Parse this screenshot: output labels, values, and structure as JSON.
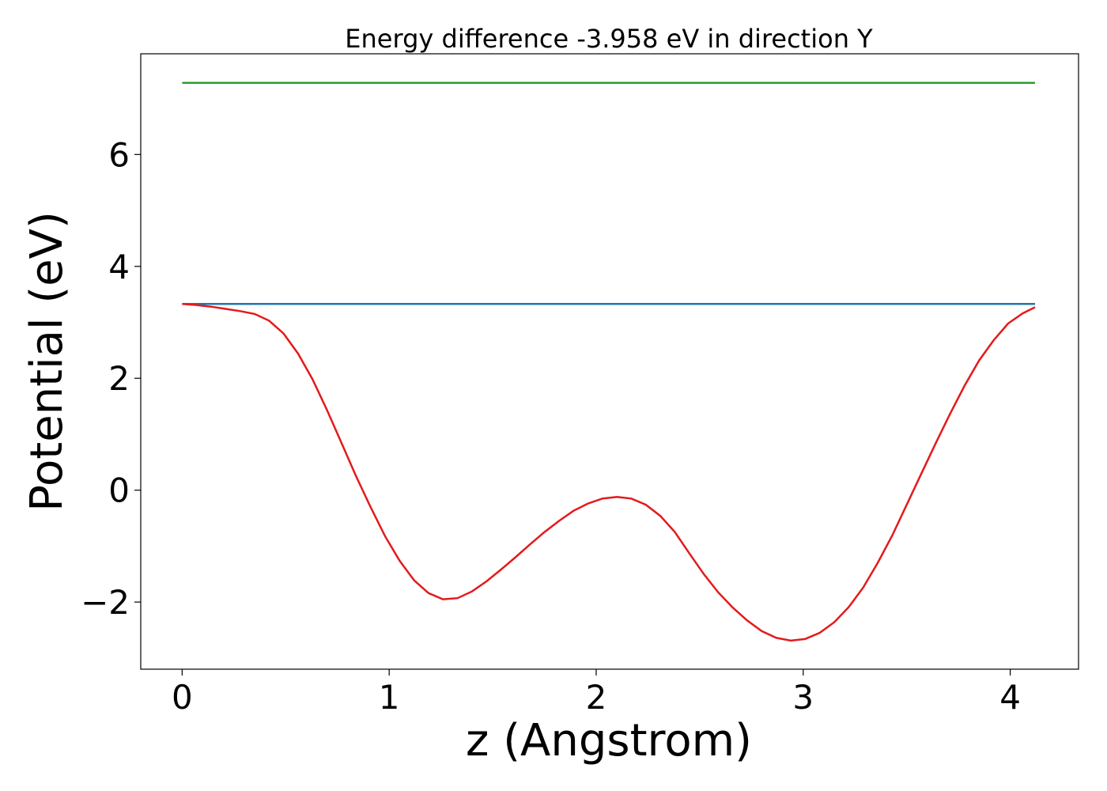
{
  "chart_data": {
    "type": "line",
    "title": "Energy difference -3.958 eV in direction Y",
    "xlabel": "z (Angstrom)",
    "ylabel": "Potential (eV)",
    "xlim": [
      -0.2,
      4.33
    ],
    "ylim": [
      -3.2,
      7.8
    ],
    "xticks": [
      0,
      1,
      2,
      3,
      4
    ],
    "yticks": [
      -2,
      0,
      2,
      4,
      6
    ],
    "xtick_labels": [
      "0",
      "1",
      "2",
      "3",
      "4"
    ],
    "ytick_labels": [
      "−2",
      "0",
      "2",
      "4",
      "6"
    ],
    "grid": false,
    "series": [
      {
        "color": "#2ca02c",
        "x": [
          0,
          4.12
        ],
        "y": [
          7.28,
          7.28
        ]
      },
      {
        "color": "#1f77b4",
        "x": [
          0,
          4.12
        ],
        "y": [
          3.33,
          3.33
        ]
      },
      {
        "color": "#e31a1c",
        "x": [
          0,
          0.07,
          0.14,
          0.21,
          0.28,
          0.35,
          0.42,
          0.49,
          0.56,
          0.63,
          0.7,
          0.77,
          0.84,
          0.91,
          0.98,
          1.05,
          1.12,
          1.19,
          1.26,
          1.33,
          1.4,
          1.47,
          1.54,
          1.61,
          1.68,
          1.75,
          1.82,
          1.89,
          1.96,
          2.03,
          2.1,
          2.17,
          2.24,
          2.31,
          2.38,
          2.45,
          2.52,
          2.59,
          2.66,
          2.73,
          2.8,
          2.87,
          2.94,
          3.01,
          3.08,
          3.15,
          3.22,
          3.29,
          3.36,
          3.43,
          3.5,
          3.57,
          3.64,
          3.71,
          3.78,
          3.85,
          3.92,
          3.99,
          4.06,
          4.12
        ],
        "y": [
          3.33,
          3.31,
          3.28,
          3.24,
          3.2,
          3.15,
          3.03,
          2.8,
          2.44,
          1.98,
          1.43,
          0.84,
          0.25,
          -0.3,
          -0.82,
          -1.26,
          -1.61,
          -1.84,
          -1.95,
          -1.93,
          -1.81,
          -1.63,
          -1.42,
          -1.2,
          -0.97,
          -0.75,
          -0.55,
          -0.37,
          -0.24,
          -0.15,
          -0.12,
          -0.15,
          -0.26,
          -0.46,
          -0.75,
          -1.13,
          -1.5,
          -1.83,
          -2.1,
          -2.33,
          -2.52,
          -2.64,
          -2.69,
          -2.66,
          -2.55,
          -2.36,
          -2.09,
          -1.74,
          -1.3,
          -0.81,
          -0.26,
          0.29,
          0.84,
          1.37,
          1.87,
          2.32,
          2.68,
          2.98,
          3.16,
          3.27
        ]
      }
    ]
  }
}
